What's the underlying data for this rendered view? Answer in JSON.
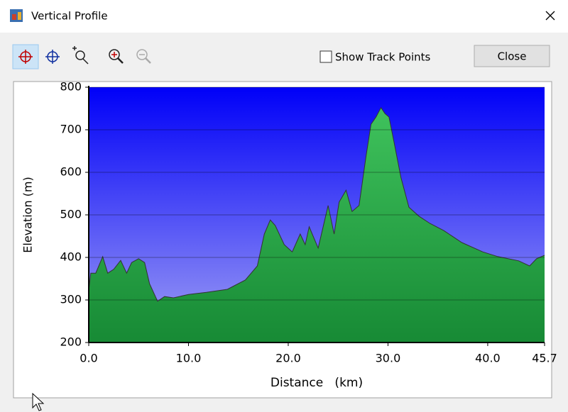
{
  "window": {
    "title": "Vertical Profile"
  },
  "toolbar": {
    "checkbox_label": "Show Track Points",
    "close_button": "Close"
  },
  "chart_data": {
    "type": "area",
    "xlabel": "Distance   (km)",
    "ylabel": "Elevation (m)",
    "xlim": [
      0,
      45.7
    ],
    "ylim": [
      200,
      800
    ],
    "xticks": [
      {
        "value": 0,
        "label": "0.0"
      },
      {
        "value": 10,
        "label": "10.0"
      },
      {
        "value": 20,
        "label": "20.0"
      },
      {
        "value": 30,
        "label": "30.0"
      },
      {
        "value": 40,
        "label": "40.0"
      },
      45.7
    ],
    "yticks": [
      200,
      300,
      400,
      500,
      600,
      700,
      800
    ],
    "grid": true,
    "color": "#22a043",
    "x": [
      0,
      0.2,
      0.7,
      1.4,
      1.9,
      2.5,
      3.2,
      3.8,
      4.3,
      5.0,
      5.6,
      6.1,
      6.9,
      7.6,
      8.5,
      10.0,
      11.8,
      13.9,
      15.7,
      16.9,
      17.6,
      18.2,
      18.7,
      19.6,
      20.4,
      21.2,
      21.7,
      22.1,
      23.0,
      23.5,
      24.0,
      24.6,
      25.1,
      25.8,
      26.4,
      27.1,
      27.8,
      28.3,
      28.8,
      29.3,
      29.7,
      30.1,
      30.6,
      31.3,
      32.1,
      33.1,
      34.2,
      35.6,
      37.4,
      39.5,
      41.0,
      43.1,
      44.2,
      44.9,
      45.7
    ],
    "values": [
      322,
      363,
      363,
      402,
      363,
      372,
      393,
      363,
      388,
      397,
      388,
      338,
      297,
      308,
      305,
      313,
      318,
      325,
      347,
      380,
      455,
      488,
      475,
      430,
      413,
      455,
      430,
      472,
      422,
      472,
      522,
      455,
      530,
      558,
      508,
      522,
      638,
      713,
      730,
      752,
      738,
      730,
      672,
      588,
      518,
      497,
      480,
      463,
      435,
      413,
      402,
      392,
      380,
      397,
      405
    ]
  }
}
